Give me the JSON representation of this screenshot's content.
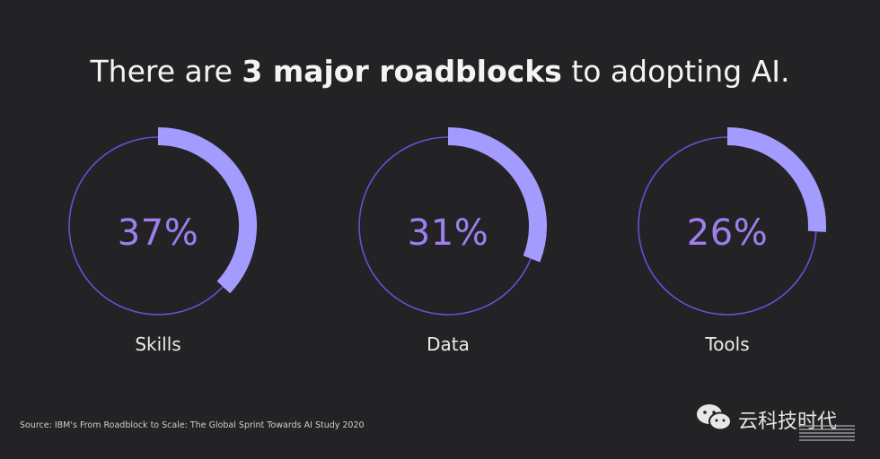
{
  "title": {
    "prefix": "There are ",
    "emphasis": "3 major roadblocks",
    "suffix": " to adopting AI."
  },
  "chart_data": {
    "type": "pie",
    "title": "There are 3 major roadblocks to adopting AI.",
    "categories": [
      "Skills",
      "Data",
      "Tools"
    ],
    "values": [
      37,
      31,
      26
    ],
    "value_labels": [
      "37%",
      "31%",
      "26%"
    ],
    "unit": "%",
    "style": "progress-ring",
    "colors": {
      "arc": "#a49bff",
      "ring": "#6f4bd8",
      "percent_text": "#9d7ff0"
    }
  },
  "source": "Source: IBM's From Roadblock to Scale: The Global Sprint Towards AI Study 2020",
  "watermark": {
    "text": "云科技时代",
    "icon": "wechat-icon"
  },
  "logo": "IBM"
}
